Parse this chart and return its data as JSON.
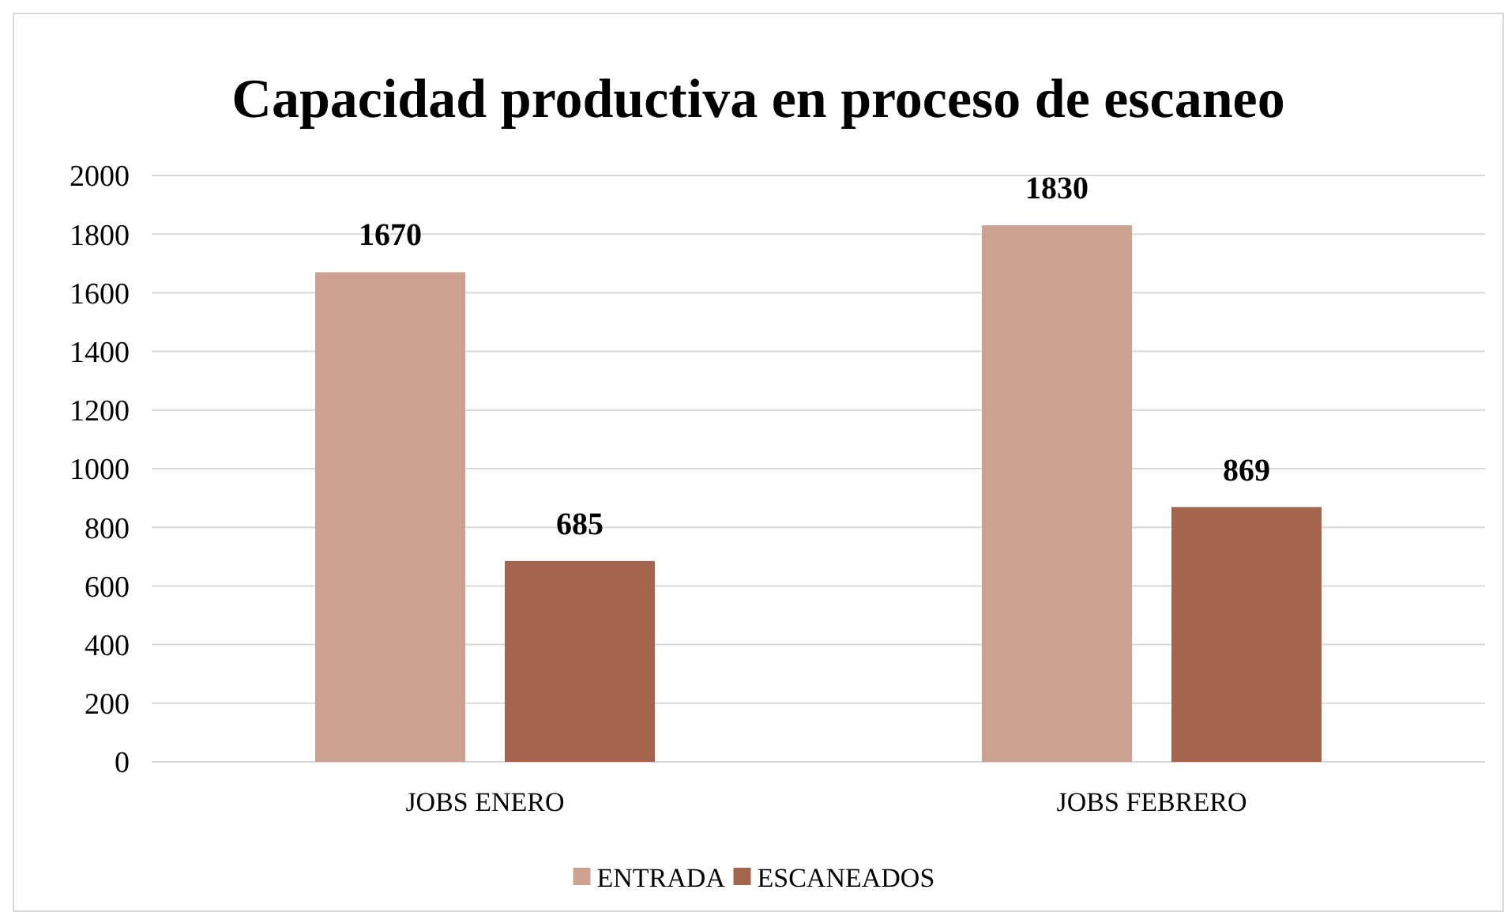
{
  "chart_data": {
    "type": "bar",
    "title": "Capacidad productiva en proceso de escaneo",
    "categories": [
      "JOBS ENERO",
      "JOBS FEBRERO"
    ],
    "series": [
      {
        "name": "ENTRADA",
        "color": "#cda191",
        "values": [
          1670,
          1830
        ]
      },
      {
        "name": "ESCANEADOS",
        "color": "#a5644c",
        "values": [
          685,
          869
        ]
      }
    ],
    "ylim": [
      0,
      2000
    ],
    "yticks": [
      0,
      200,
      400,
      600,
      800,
      1000,
      1200,
      1400,
      1600,
      1800,
      2000
    ],
    "grid": "y",
    "data_labels": true,
    "legend": "bottom"
  }
}
